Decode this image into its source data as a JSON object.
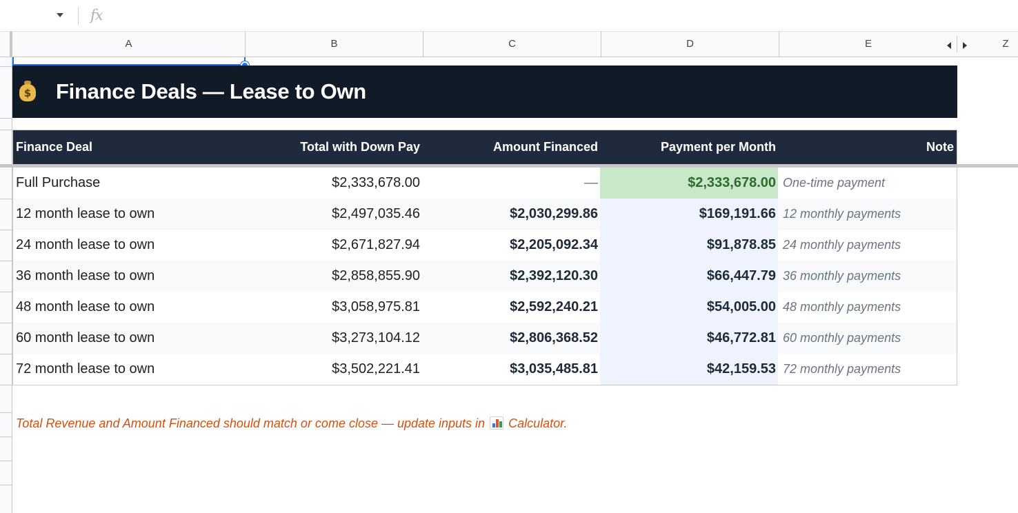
{
  "formula_bar": {
    "fx_label": "fx"
  },
  "columns": [
    "A",
    "B",
    "C",
    "D",
    "E",
    "Z"
  ],
  "title": {
    "icon": "moneybag-icon",
    "icon_glyph": "$",
    "text": "Finance Deals — Lease to Own"
  },
  "table": {
    "headers": [
      "Finance Deal",
      "Total with Down Pay",
      "Amount Financed",
      "Payment per Month",
      "Note"
    ],
    "rows": [
      {
        "deal": "Full Purchase",
        "total": "$2,333,678.00",
        "financed": "—",
        "monthly": "$2,333,678.00",
        "note": "One-time payment"
      },
      {
        "deal": "12 month lease to own",
        "total": "$2,497,035.46",
        "financed": "$2,030,299.86",
        "monthly": "$169,191.66",
        "note": "12 monthly payments"
      },
      {
        "deal": "24 month lease to own",
        "total": "$2,671,827.94",
        "financed": "$2,205,092.34",
        "monthly": "$91,878.85",
        "note": "24 monthly payments"
      },
      {
        "deal": "36 month lease to own",
        "total": "$2,858,855.90",
        "financed": "$2,392,120.30",
        "monthly": "$66,447.79",
        "note": "36 monthly payments"
      },
      {
        "deal": "48 month lease to own",
        "total": "$3,058,975.81",
        "financed": "$2,592,240.21",
        "monthly": "$54,005.00",
        "note": "48 monthly payments"
      },
      {
        "deal": "60 month lease to own",
        "total": "$3,273,104.12",
        "financed": "$2,806,368.52",
        "monthly": "$46,772.81",
        "note": "60 monthly payments"
      },
      {
        "deal": "72 month lease to own",
        "total": "$3,502,221.41",
        "financed": "$3,035,485.81",
        "monthly": "$42,159.53",
        "note": "72 monthly payments"
      }
    ]
  },
  "footnote": {
    "before": "Total Revenue and Amount Financed should match or come close — update inputs in ",
    "icon": "bar-chart-icon",
    "after": " Calculator."
  },
  "colors": {
    "title_bg": "#111b27",
    "header_bg": "#1f2a3c",
    "highlight_bg": "#c9e7c9",
    "highlight_text": "#2e6b2e",
    "payment_col_bg": "#eef3fd",
    "footnote_text": "#d4500f",
    "selection": "#1a73e8"
  }
}
